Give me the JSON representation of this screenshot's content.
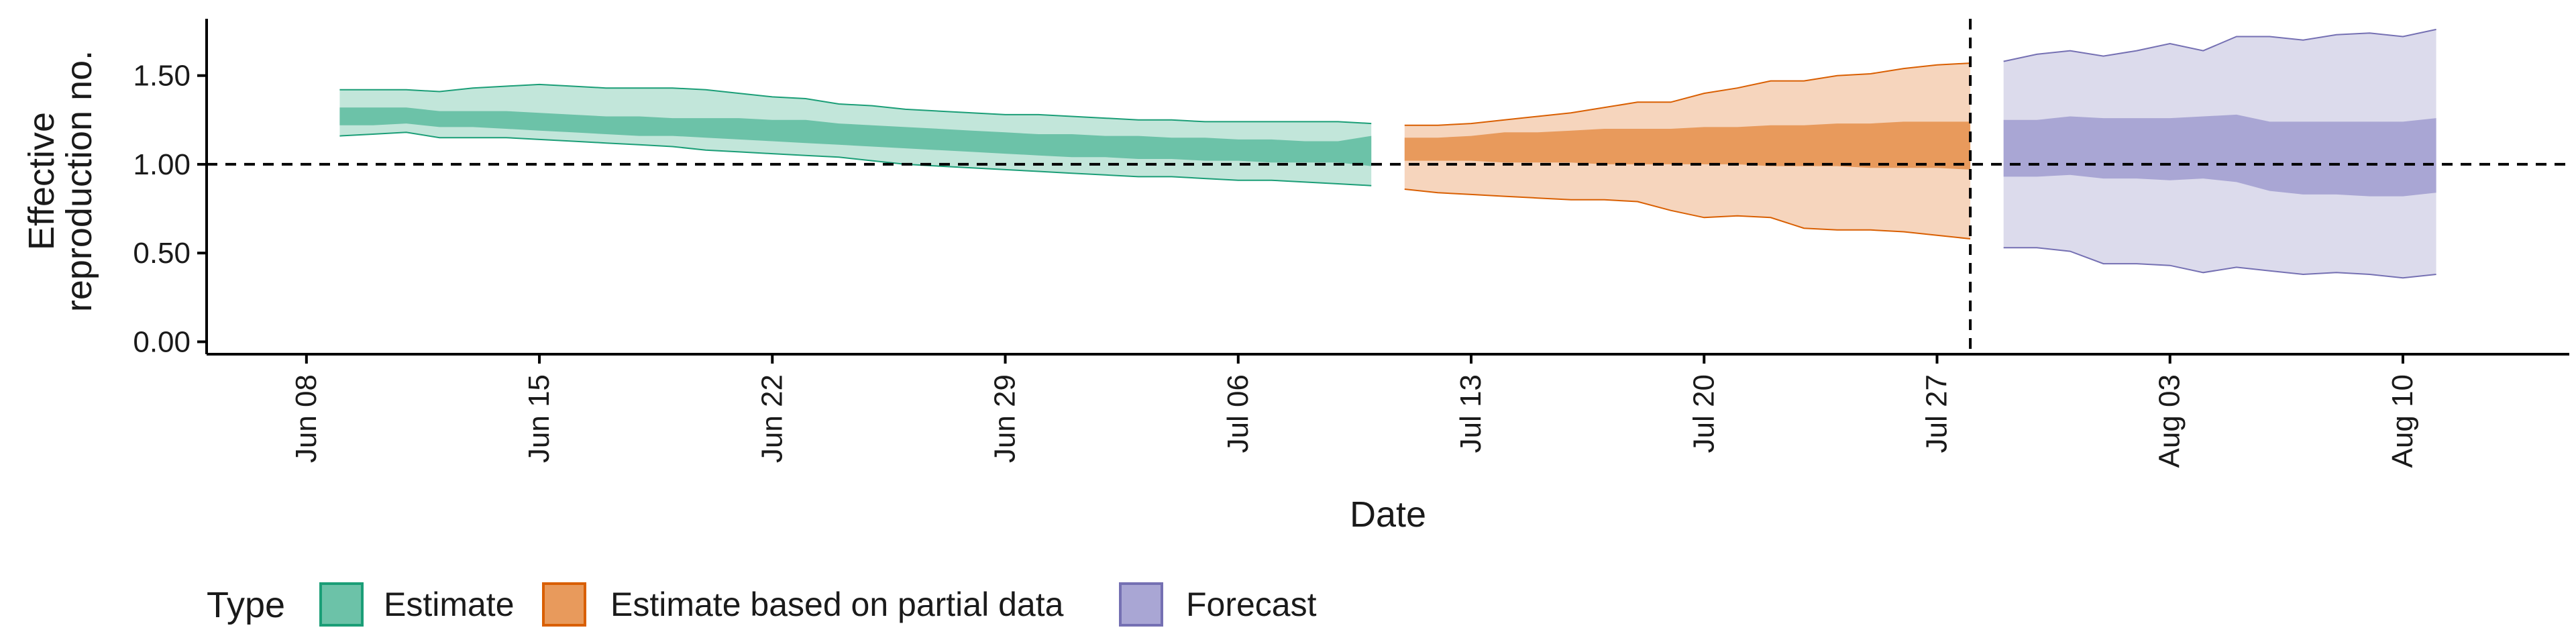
{
  "chart_data": {
    "type": "area",
    "title": "",
    "xlabel": "Date",
    "ylabel_lines": [
      "Effective",
      "reproduction no."
    ],
    "x_range": [
      "2020-06-05",
      "2020-08-15"
    ],
    "ylim": [
      -0.07,
      1.82
    ],
    "x_ticks": [
      {
        "date": "2020-06-08",
        "label": "Jun 08"
      },
      {
        "date": "2020-06-15",
        "label": "Jun 15"
      },
      {
        "date": "2020-06-22",
        "label": "Jun 22"
      },
      {
        "date": "2020-06-29",
        "label": "Jun 29"
      },
      {
        "date": "2020-07-06",
        "label": "Jul 06"
      },
      {
        "date": "2020-07-13",
        "label": "Jul 13"
      },
      {
        "date": "2020-07-20",
        "label": "Jul 20"
      },
      {
        "date": "2020-07-27",
        "label": "Jul 27"
      },
      {
        "date": "2020-08-03",
        "label": "Aug 03"
      },
      {
        "date": "2020-08-10",
        "label": "Aug 10"
      }
    ],
    "y_ticks": [
      {
        "value": 0.0,
        "label": "0.00"
      },
      {
        "value": 0.5,
        "label": "0.50"
      },
      {
        "value": 1.0,
        "label": "1.00"
      },
      {
        "value": 1.5,
        "label": "1.50"
      }
    ],
    "reference_lines": {
      "horizontal_y": 1.0,
      "vertical_date": "2020-07-28",
      "style": "dashed"
    },
    "grid": false,
    "legend": {
      "title": "Type",
      "position": "bottom-left",
      "items": [
        {
          "key": "estimate",
          "label": "Estimate"
        },
        {
          "key": "partial",
          "label": "Estimate based on partial data"
        },
        {
          "key": "forecast",
          "label": "Forecast"
        }
      ]
    },
    "series": [
      {
        "key": "estimate",
        "color": "#1b9e77",
        "fill": "#6cc2a8",
        "outer_fill": "#c2e6da",
        "x": [
          "2020-06-09",
          "2020-06-10",
          "2020-06-11",
          "2020-06-12",
          "2020-06-13",
          "2020-06-14",
          "2020-06-15",
          "2020-06-16",
          "2020-06-17",
          "2020-06-18",
          "2020-06-19",
          "2020-06-20",
          "2020-06-21",
          "2020-06-22",
          "2020-06-23",
          "2020-06-24",
          "2020-06-25",
          "2020-06-26",
          "2020-06-27",
          "2020-06-28",
          "2020-06-29",
          "2020-06-30",
          "2020-07-01",
          "2020-07-02",
          "2020-07-03",
          "2020-07-04",
          "2020-07-05",
          "2020-07-06",
          "2020-07-07",
          "2020-07-08",
          "2020-07-09",
          "2020-07-10"
        ],
        "upper90": [
          1.42,
          1.42,
          1.42,
          1.41,
          1.43,
          1.44,
          1.45,
          1.44,
          1.43,
          1.43,
          1.43,
          1.42,
          1.4,
          1.38,
          1.37,
          1.34,
          1.33,
          1.31,
          1.3,
          1.29,
          1.28,
          1.28,
          1.27,
          1.26,
          1.25,
          1.25,
          1.24,
          1.24,
          1.24,
          1.24,
          1.24,
          1.23
        ],
        "upper50": [
          1.32,
          1.32,
          1.32,
          1.3,
          1.3,
          1.3,
          1.29,
          1.28,
          1.27,
          1.27,
          1.26,
          1.26,
          1.26,
          1.25,
          1.25,
          1.23,
          1.22,
          1.21,
          1.2,
          1.19,
          1.18,
          1.17,
          1.17,
          1.16,
          1.16,
          1.15,
          1.15,
          1.14,
          1.14,
          1.13,
          1.13,
          1.16
        ],
        "lower50": [
          1.22,
          1.22,
          1.23,
          1.21,
          1.21,
          1.2,
          1.19,
          1.18,
          1.17,
          1.16,
          1.16,
          1.15,
          1.14,
          1.13,
          1.12,
          1.11,
          1.1,
          1.09,
          1.08,
          1.07,
          1.06,
          1.05,
          1.04,
          1.04,
          1.03,
          1.03,
          1.02,
          1.02,
          1.01,
          1.01,
          1.01,
          0.99
        ],
        "lower90": [
          1.16,
          1.17,
          1.18,
          1.15,
          1.15,
          1.15,
          1.14,
          1.13,
          1.12,
          1.11,
          1.1,
          1.08,
          1.07,
          1.06,
          1.05,
          1.04,
          1.02,
          1.0,
          0.99,
          0.98,
          0.97,
          0.96,
          0.95,
          0.94,
          0.93,
          0.93,
          0.92,
          0.91,
          0.91,
          0.9,
          0.89,
          0.88
        ]
      },
      {
        "key": "partial",
        "color": "#d95f02",
        "fill": "#e89a5c",
        "outer_fill": "#f6d5bd",
        "x": [
          "2020-07-11",
          "2020-07-12",
          "2020-07-13",
          "2020-07-14",
          "2020-07-15",
          "2020-07-16",
          "2020-07-17",
          "2020-07-18",
          "2020-07-19",
          "2020-07-20",
          "2020-07-21",
          "2020-07-22",
          "2020-07-23",
          "2020-07-24",
          "2020-07-25",
          "2020-07-26",
          "2020-07-27",
          "2020-07-28"
        ],
        "upper90": [
          1.22,
          1.22,
          1.23,
          1.25,
          1.27,
          1.29,
          1.32,
          1.35,
          1.35,
          1.4,
          1.43,
          1.47,
          1.47,
          1.5,
          1.51,
          1.54,
          1.56,
          1.57
        ],
        "upper50": [
          1.15,
          1.15,
          1.16,
          1.18,
          1.18,
          1.19,
          1.2,
          1.2,
          1.2,
          1.21,
          1.21,
          1.22,
          1.22,
          1.23,
          1.23,
          1.24,
          1.24,
          1.24
        ],
        "lower50": [
          1.02,
          1.02,
          1.02,
          1.01,
          1.01,
          1.01,
          1.0,
          1.0,
          1.0,
          1.0,
          1.0,
          0.99,
          0.99,
          0.99,
          0.98,
          0.98,
          0.98,
          0.97
        ],
        "lower90": [
          0.86,
          0.84,
          0.83,
          0.82,
          0.81,
          0.8,
          0.8,
          0.79,
          0.74,
          0.7,
          0.71,
          0.7,
          0.64,
          0.63,
          0.63,
          0.62,
          0.6,
          0.58
        ]
      },
      {
        "key": "forecast",
        "color": "#7570b3",
        "fill": "#a9a6d4",
        "outer_fill": "#dcdbec",
        "x": [
          "2020-07-29",
          "2020-07-30",
          "2020-07-31",
          "2020-08-01",
          "2020-08-02",
          "2020-08-03",
          "2020-08-04",
          "2020-08-05",
          "2020-08-06",
          "2020-08-07",
          "2020-08-08",
          "2020-08-09",
          "2020-08-10",
          "2020-08-11"
        ],
        "upper90": [
          1.58,
          1.62,
          1.64,
          1.61,
          1.64,
          1.68,
          1.64,
          1.72,
          1.72,
          1.7,
          1.73,
          1.74,
          1.72,
          1.76
        ],
        "upper50": [
          1.25,
          1.25,
          1.27,
          1.26,
          1.26,
          1.26,
          1.27,
          1.28,
          1.24,
          1.24,
          1.24,
          1.24,
          1.24,
          1.26
        ],
        "lower50": [
          0.93,
          0.93,
          0.94,
          0.92,
          0.92,
          0.91,
          0.92,
          0.9,
          0.85,
          0.83,
          0.83,
          0.82,
          0.82,
          0.84
        ],
        "lower90": [
          0.53,
          0.53,
          0.51,
          0.44,
          0.44,
          0.43,
          0.39,
          0.42,
          0.4,
          0.38,
          0.39,
          0.38,
          0.36,
          0.38
        ]
      }
    ]
  }
}
